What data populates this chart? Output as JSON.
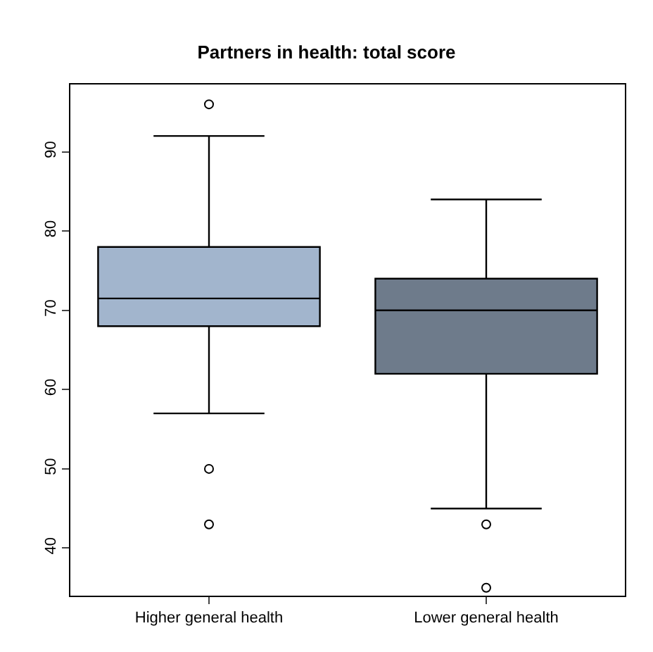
{
  "chart_data": {
    "type": "box",
    "title": "Partners in health: total score",
    "categories": [
      "Higher general health",
      "Lower general health"
    ],
    "series": [
      {
        "colors": [
          "#a2b5cd",
          "#6e7b8b"
        ],
        "boxes": [
          {
            "low": 57,
            "q1": 68,
            "median": 71.5,
            "q3": 78,
            "high": 92,
            "outliers": [
              96,
              50,
              43
            ]
          },
          {
            "low": 45,
            "q1": 62,
            "median": 70,
            "q3": 74,
            "high": 84,
            "outliers": [
              43,
              35
            ]
          }
        ]
      }
    ],
    "ylim": [
      34,
      98.5
    ],
    "yticks": [
      40,
      50,
      60,
      70,
      80,
      90
    ],
    "marker": "circle"
  }
}
